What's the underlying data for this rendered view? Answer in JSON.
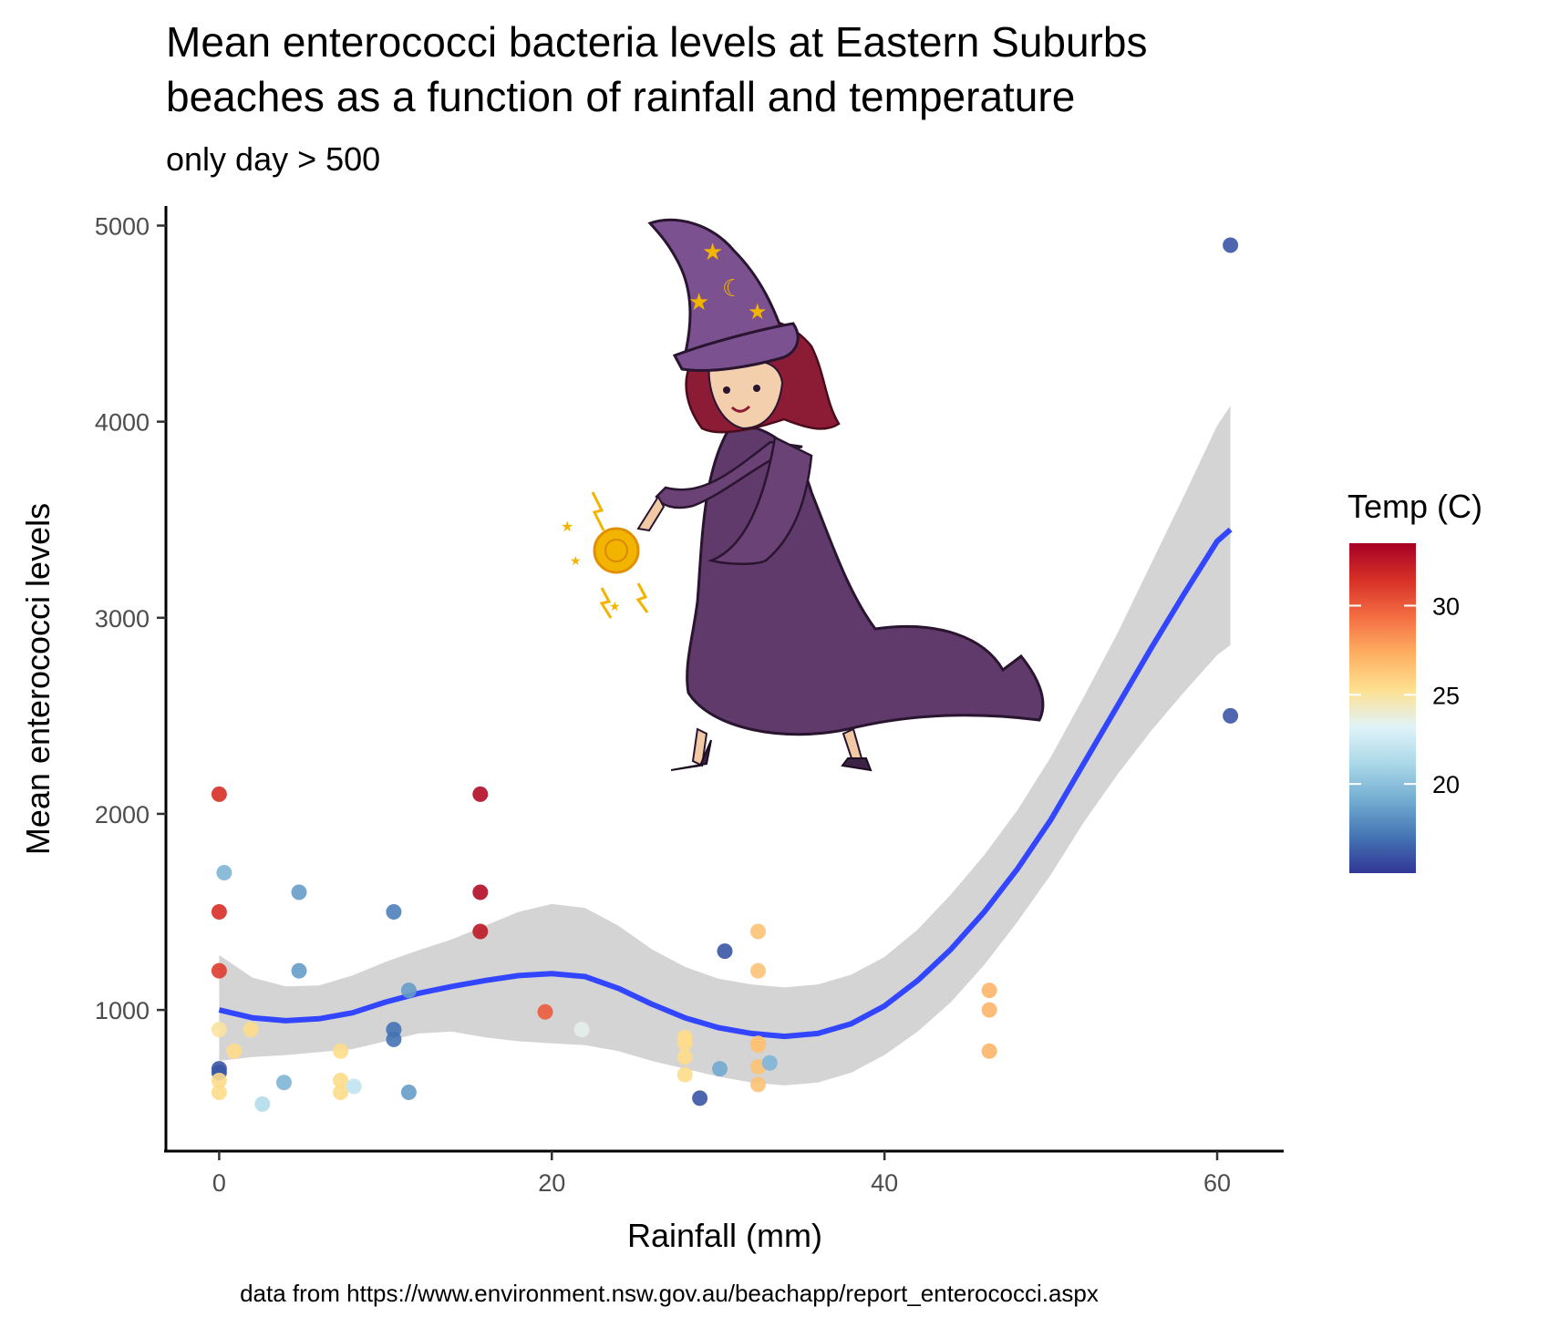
{
  "chart_data": {
    "type": "scatter",
    "title_lines": [
      "Mean enterococci bacteria levels at Eastern Suburbs",
      "beaches as a function of rainfall and temperature"
    ],
    "subtitle": "only day > 500",
    "xlabel": "Rainfall (mm)",
    "ylabel": "Mean enterococci levels",
    "caption": "data from https://www.environment.nsw.gov.au/beachapp/report_enterococci.aspx",
    "xlim": [
      -3.2,
      64
    ],
    "ylim": [
      280,
      5100
    ],
    "x_ticks": [
      0,
      20,
      40,
      60
    ],
    "y_ticks": [
      1000,
      2000,
      3000,
      4000,
      5000
    ],
    "grid": false,
    "legend": {
      "title": "Temp (C)",
      "position": "right",
      "range": [
        15,
        33.5
      ],
      "ticks": [
        20,
        25,
        30
      ],
      "palette": [
        "#313695",
        "#4575b4",
        "#74add1",
        "#abd9e9",
        "#e0f3f8",
        "#fee090",
        "#fdae61",
        "#f46d43",
        "#d73027",
        "#a50026"
      ]
    },
    "points": [
      {
        "x": 0,
        "y": 2100,
        "temp": 31.5
      },
      {
        "x": 0,
        "y": 1500,
        "temp": 31.5
      },
      {
        "x": 0,
        "y": 1200,
        "temp": 31
      },
      {
        "x": 0.3,
        "y": 1700,
        "temp": 19.5
      },
      {
        "x": 0,
        "y": 900,
        "temp": 25
      },
      {
        "x": 0,
        "y": 700,
        "temp": 16
      },
      {
        "x": 0,
        "y": 680,
        "temp": 16
      },
      {
        "x": 0,
        "y": 640,
        "temp": 25.5
      },
      {
        "x": 0,
        "y": 580,
        "temp": 25.5
      },
      {
        "x": 0.9,
        "y": 790,
        "temp": 25.5
      },
      {
        "x": 1.9,
        "y": 900,
        "temp": 25.5
      },
      {
        "x": 2.6,
        "y": 520,
        "temp": 21.5
      },
      {
        "x": 3.9,
        "y": 630,
        "temp": 19.5
      },
      {
        "x": 4.8,
        "y": 1600,
        "temp": 18.5
      },
      {
        "x": 4.8,
        "y": 1200,
        "temp": 18.5
      },
      {
        "x": 7.3,
        "y": 790,
        "temp": 25.5
      },
      {
        "x": 7.3,
        "y": 640,
        "temp": 25.5
      },
      {
        "x": 7.3,
        "y": 580,
        "temp": 25.5
      },
      {
        "x": 8.1,
        "y": 610,
        "temp": 22
      },
      {
        "x": 10.5,
        "y": 1500,
        "temp": 17.5
      },
      {
        "x": 10.5,
        "y": 900,
        "temp": 17
      },
      {
        "x": 10.5,
        "y": 850,
        "temp": 17
      },
      {
        "x": 11.4,
        "y": 1100,
        "temp": 18.5
      },
      {
        "x": 11.4,
        "y": 580,
        "temp": 18.5
      },
      {
        "x": 15.7,
        "y": 2100,
        "temp": 33
      },
      {
        "x": 15.7,
        "y": 1600,
        "temp": 33
      },
      {
        "x": 15.7,
        "y": 1400,
        "temp": 32.5
      },
      {
        "x": 19.6,
        "y": 990,
        "temp": 30
      },
      {
        "x": 21.8,
        "y": 900,
        "temp": 23.5
      },
      {
        "x": 28,
        "y": 860,
        "temp": 25.5
      },
      {
        "x": 28,
        "y": 830,
        "temp": 25.5
      },
      {
        "x": 28,
        "y": 760,
        "temp": 25.5
      },
      {
        "x": 28,
        "y": 670,
        "temp": 25.5
      },
      {
        "x": 28.9,
        "y": 550,
        "temp": 16
      },
      {
        "x": 30.1,
        "y": 700,
        "temp": 19
      },
      {
        "x": 30.4,
        "y": 1300,
        "temp": 16
      },
      {
        "x": 32.4,
        "y": 1400,
        "temp": 26.5
      },
      {
        "x": 32.4,
        "y": 1200,
        "temp": 26.5
      },
      {
        "x": 32.4,
        "y": 830,
        "temp": 26.5
      },
      {
        "x": 32.4,
        "y": 820,
        "temp": 26.5
      },
      {
        "x": 32.4,
        "y": 710,
        "temp": 26.5
      },
      {
        "x": 32.4,
        "y": 620,
        "temp": 26.5
      },
      {
        "x": 33.1,
        "y": 730,
        "temp": 19.5
      },
      {
        "x": 46.3,
        "y": 1100,
        "temp": 27
      },
      {
        "x": 46.3,
        "y": 1000,
        "temp": 27
      },
      {
        "x": 46.3,
        "y": 790,
        "temp": 27
      },
      {
        "x": 60.8,
        "y": 4900,
        "temp": 16
      },
      {
        "x": 60.8,
        "y": 2500,
        "temp": 16
      }
    ],
    "smooth_fit": {
      "x": [
        0,
        2,
        4,
        6,
        8,
        10,
        12,
        14,
        16,
        18,
        20,
        22,
        24,
        26,
        28,
        30,
        32,
        34,
        36,
        38,
        40,
        42,
        44,
        46,
        48,
        50,
        52,
        54,
        56,
        58,
        60,
        60.8
      ],
      "y": [
        1000,
        960,
        945,
        955,
        985,
        1040,
        1085,
        1120,
        1150,
        1175,
        1185,
        1170,
        1110,
        1030,
        960,
        910,
        880,
        865,
        880,
        930,
        1020,
        1150,
        1310,
        1500,
        1720,
        1970,
        2260,
        2550,
        2840,
        3120,
        3390,
        3450
      ],
      "lower": [
        740,
        760,
        770,
        785,
        800,
        840,
        880,
        890,
        860,
        840,
        830,
        820,
        790,
        740,
        700,
        660,
        630,
        615,
        630,
        680,
        770,
        890,
        1040,
        1230,
        1450,
        1690,
        1960,
        2200,
        2420,
        2620,
        2810,
        2860
      ],
      "upper": [
        1280,
        1165,
        1120,
        1125,
        1175,
        1245,
        1305,
        1360,
        1430,
        1500,
        1540,
        1520,
        1430,
        1310,
        1220,
        1160,
        1130,
        1115,
        1130,
        1180,
        1270,
        1410,
        1590,
        1790,
        2020,
        2290,
        2600,
        2920,
        3270,
        3620,
        3980,
        4080
      ],
      "line_color": "#3346ff",
      "band_color": "#d4d4d4"
    }
  }
}
